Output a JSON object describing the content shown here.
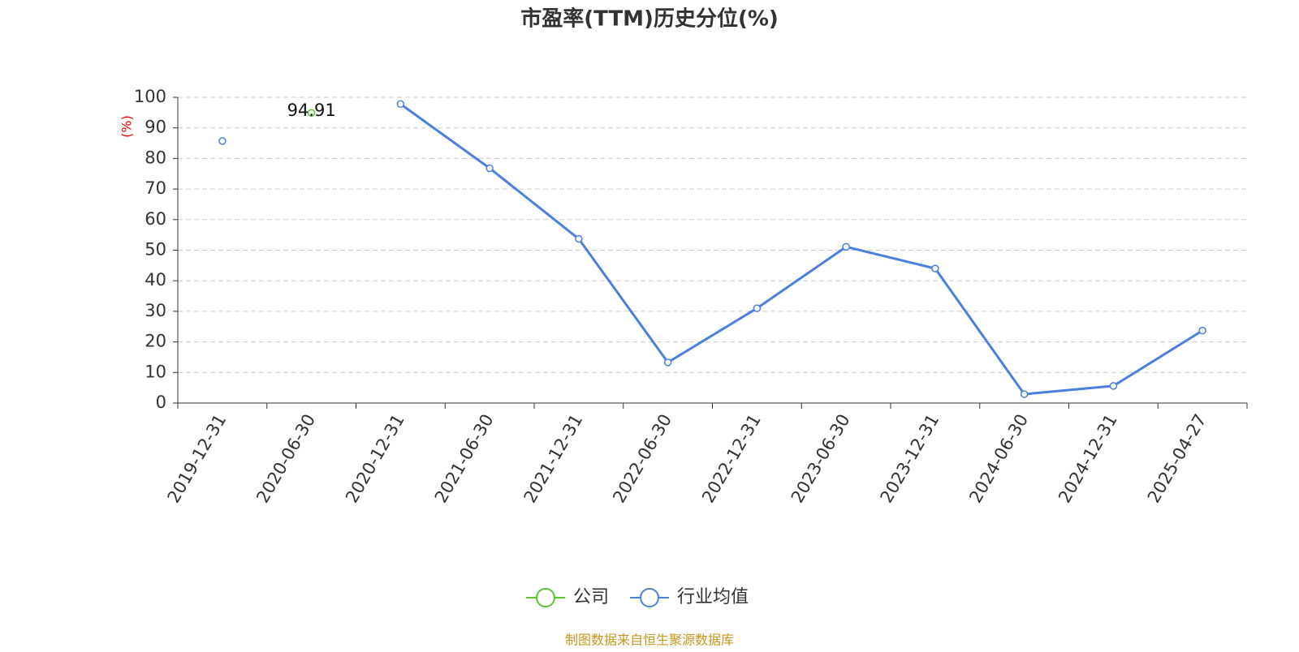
{
  "chart_data": {
    "type": "line",
    "title": "市盈率(TTM)历史分位(%)",
    "y_label": "(%)",
    "source": "制图数据来自恒生聚源数据库",
    "categories": [
      "2019-12-31",
      "2020-06-30",
      "2020-12-31",
      "2021-06-30",
      "2021-12-31",
      "2022-06-30",
      "2022-12-31",
      "2023-06-30",
      "2023-12-31",
      "2024-06-30",
      "2024-12-31",
      "2025-04-27"
    ],
    "series": [
      {
        "name": "公司",
        "color": "#5cc332",
        "values": [
          null,
          94.91,
          null,
          null,
          null,
          null,
          null,
          null,
          null,
          null,
          null,
          null
        ],
        "show_labels": true
      },
      {
        "name": "行业均值",
        "color": "#4a7fdb",
        "values": [
          85.7,
          null,
          97.8,
          76.8,
          53.7,
          13.3,
          31.0,
          51.1,
          44.0,
          2.9,
          5.6,
          23.7
        ],
        "show_labels": false
      }
    ],
    "ylim": [
      0,
      100
    ],
    "yticks": [
      0,
      10,
      20,
      30,
      40,
      50,
      60,
      70,
      80,
      90,
      100
    ],
    "grid": true
  }
}
